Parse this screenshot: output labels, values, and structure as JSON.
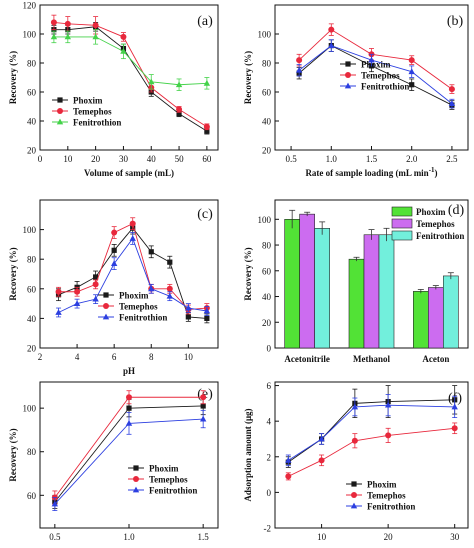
{
  "colors": {
    "phoxim": "#1a1a1a",
    "temephos": "#e8283c",
    "fenitrothion": "#2c3fe0",
    "fenitrothion_a": "#44d24a",
    "bar_phoxim": "#52e236",
    "bar_temephos": "#cc6cf0",
    "bar_fenitrothion": "#72efdc"
  },
  "chart_data": [
    {
      "id": "a",
      "panel_label": "(a)",
      "type": "line",
      "xlabel": "Volume of sample (mL)",
      "ylabel": "Recovery (%)",
      "xlim": [
        0,
        64
      ],
      "ylim": [
        20,
        120
      ],
      "xticks": [
        0,
        10,
        20,
        30,
        40,
        50,
        60
      ],
      "yticks": [
        20,
        40,
        60,
        80,
        100,
        120
      ],
      "legend": "bottom-left",
      "x": [
        5,
        10,
        20,
        30,
        40,
        50,
        60
      ],
      "series": [
        {
          "name": "Phoxim",
          "color_key": "phoxim",
          "marker": "square",
          "values": [
            103,
            103,
            105,
            90,
            60,
            45,
            33
          ],
          "errors": [
            3,
            3,
            3,
            3,
            3,
            2,
            2
          ]
        },
        {
          "name": "Temephos",
          "color_key": "temephos",
          "marker": "circle",
          "values": [
            108,
            107,
            106,
            98,
            63,
            48,
            36
          ],
          "errors": [
            5,
            5,
            6,
            3,
            3,
            2,
            2
          ]
        },
        {
          "name": "Fenitrothion",
          "color_key": "fenitrothion_a",
          "marker": "triangle",
          "values": [
            98,
            98,
            98,
            88,
            67,
            65,
            66
          ],
          "errors": [
            4,
            4,
            5,
            5,
            5,
            4,
            4
          ]
        }
      ]
    },
    {
      "id": "b",
      "panel_label": "(b)",
      "type": "line",
      "xlabel": "Rate of sample loading (mL min",
      "xlabel_sup": "-1",
      "xlabel_end": ")",
      "ylabel": "Recovery (%)",
      "xlim": [
        0.3,
        2.7
      ],
      "ylim": [
        20,
        120
      ],
      "xticks": [
        0.5,
        1.0,
        1.5,
        2.0,
        2.5
      ],
      "xtick_labels": [
        "0.5",
        "1.0",
        "1.5",
        "2.0",
        "2.5"
      ],
      "yticks": [
        20,
        40,
        60,
        80,
        100
      ],
      "legend": "center",
      "x": [
        0.6,
        1.0,
        1.5,
        2.0,
        2.5
      ],
      "series": [
        {
          "name": "Phoxim",
          "color_key": "phoxim",
          "marker": "square",
          "values": [
            73,
            92,
            78,
            65,
            51
          ],
          "errors": [
            4,
            4,
            4,
            4,
            3
          ]
        },
        {
          "name": "Temephos",
          "color_key": "temephos",
          "marker": "circle",
          "values": [
            82,
            103,
            86,
            82,
            62
          ],
          "errors": [
            4,
            4,
            4,
            3,
            3
          ]
        },
        {
          "name": "Fenitrothion",
          "color_key": "fenitrothion",
          "marker": "triangle",
          "values": [
            75,
            92,
            82,
            74,
            52
          ],
          "errors": [
            4,
            4,
            4,
            4,
            3
          ]
        }
      ]
    },
    {
      "id": "c",
      "panel_label": "(c)",
      "type": "line",
      "xlabel": "pH",
      "ylabel": "Recovery (%)",
      "xlim": [
        2,
        11.6
      ],
      "ylim": [
        20,
        120
      ],
      "xticks": [
        2,
        4,
        6,
        8,
        10
      ],
      "yticks": [
        20,
        40,
        60,
        80,
        100
      ],
      "legend": "bottom-right",
      "x": [
        3,
        4,
        5,
        6,
        7,
        8,
        9,
        10,
        11
      ],
      "series": [
        {
          "name": "Phoxim",
          "color_key": "phoxim",
          "marker": "square",
          "values": [
            56,
            61,
            68,
            86,
            101,
            85,
            78,
            41,
            40
          ],
          "errors": [
            4,
            4,
            4,
            4,
            4,
            4,
            4,
            3,
            3
          ]
        },
        {
          "name": "Temephos",
          "color_key": "temephos",
          "marker": "circle",
          "values": [
            58,
            58,
            63,
            98,
            104,
            60,
            60,
            46,
            47
          ],
          "errors": [
            3,
            3,
            3,
            4,
            4,
            3,
            3,
            3,
            3
          ]
        },
        {
          "name": "Fenitrothion",
          "color_key": "fenitrothion",
          "marker": "triangle",
          "values": [
            44,
            50,
            53,
            77,
            94,
            60,
            55,
            47,
            45
          ],
          "errors": [
            3,
            3,
            3,
            4,
            4,
            3,
            3,
            3,
            3
          ]
        }
      ]
    },
    {
      "id": "d",
      "panel_label": "(d)",
      "type": "bar",
      "ylabel": "Recovery (%)",
      "ylim": [
        0,
        115
      ],
      "yticks": [
        0,
        20,
        40,
        60,
        80,
        100
      ],
      "legend": "top-right",
      "categories": [
        "Acetonitrile",
        "Methanol",
        "Aceton"
      ],
      "series": [
        {
          "name": "Phoxim",
          "color_key": "bar_phoxim",
          "values": [
            100,
            69,
            44
          ],
          "errors": [
            7,
            1.5,
            1.5
          ]
        },
        {
          "name": "Temephos",
          "color_key": "bar_temephos",
          "values": [
            104,
            88,
            47
          ],
          "errors": [
            1.5,
            4,
            1.5
          ]
        },
        {
          "name": "Fenitrothion",
          "color_key": "bar_fenitrothion",
          "values": [
            93,
            88,
            56
          ],
          "errors": [
            5,
            5,
            2.5
          ]
        }
      ]
    },
    {
      "id": "e",
      "panel_label": "(e)",
      "type": "line",
      "xlabel": "",
      "ylabel": "Recovery (%)",
      "xlim": [
        0.4,
        1.6
      ],
      "ylim": [
        45,
        112
      ],
      "xticks": [
        0.5,
        1.0,
        1.5
      ],
      "xtick_labels": [
        "0.5",
        "1.0",
        "1.5"
      ],
      "yticks": [
        60,
        80,
        100
      ],
      "legend": "center-right",
      "x": [
        0.5,
        1.0,
        1.5
      ],
      "series": [
        {
          "name": "Phoxim",
          "color_key": "phoxim",
          "marker": "square",
          "values": [
            57,
            100,
            101
          ],
          "errors": [
            3,
            4,
            4
          ]
        },
        {
          "name": "Temephos",
          "color_key": "temephos",
          "marker": "circle",
          "values": [
            59,
            105,
            105
          ],
          "errors": [
            3,
            3,
            3
          ]
        },
        {
          "name": "Fenitrothion",
          "color_key": "fenitrothion",
          "marker": "triangle",
          "values": [
            56,
            93,
            95
          ],
          "errors": [
            3,
            5,
            4
          ]
        }
      ]
    },
    {
      "id": "f",
      "panel_label": "(f)",
      "type": "line",
      "xlabel": "",
      "ylabel": "Adsorption amount (μg)",
      "xlim": [
        3,
        32
      ],
      "ylim": [
        -2,
        6.2
      ],
      "xticks": [
        10,
        20,
        30
      ],
      "yticks": [
        -2,
        0,
        2,
        4,
        6
      ],
      "legend": "center-right",
      "x": [
        5,
        10,
        15,
        20,
        30
      ],
      "series": [
        {
          "name": "Phoxim",
          "color_key": "phoxim",
          "marker": "square",
          "values": [
            1.7,
            3.0,
            5.0,
            5.1,
            5.2
          ],
          "errors": [
            0.3,
            0.3,
            0.8,
            0.9,
            0.8
          ]
        },
        {
          "name": "Temephos",
          "color_key": "temephos",
          "marker": "circle",
          "values": [
            0.9,
            1.8,
            2.9,
            3.2,
            3.6
          ],
          "errors": [
            0.2,
            0.3,
            0.4,
            0.4,
            0.3
          ]
        },
        {
          "name": "Fenitrothion",
          "color_key": "fenitrothion",
          "marker": "triangle",
          "values": [
            1.8,
            3.0,
            4.8,
            4.9,
            4.8
          ],
          "errors": [
            0.3,
            0.3,
            0.5,
            0.6,
            0.6
          ]
        }
      ]
    }
  ]
}
